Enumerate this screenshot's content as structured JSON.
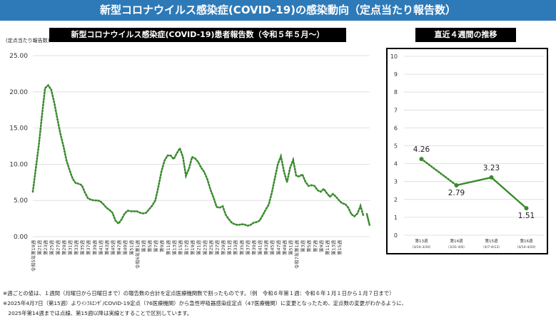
{
  "header": {
    "title": "新型コロナウイルス感染症(COVID-19)の感染動向（定点当たり報告数）"
  },
  "main_chart_title": "新型コロナウイルス感染症(COVID-19)患者報告数（令和５年５月～）",
  "side_chart_title": "直近４週間の推移",
  "y_unit_label": "(定点当たり報告数)",
  "notes": [
    "※週ごとの値は、１週間（月曜日から日曜日まで）の報告数の合計を定点医療機関数で割ったものです。（例　令和６年第１週：令和６年１月１日から１月７日まで）",
    "※2025年4月7日（第15週）よりｲﾝﾌﾙｴﾝｻﾞ/COVID-19定点（76医療機関）から急性呼吸器感染症定点（47医療機関）に変更となったため、定点数の変更がわかるように、",
    "　2025年第14週までは点線、第15週以降は実線とすることで区別しています。"
  ],
  "chart_data": [
    {
      "type": "line",
      "y_tick_labels": [
        "0.00",
        "5.00",
        "10.00",
        "15.00",
        "20.00",
        "25.00"
      ],
      "ylim": [
        0,
        25
      ],
      "x_tick_labels": [
        "令和5年第19週",
        "第21週",
        "第23週",
        "第25週",
        "第27週",
        "第29週",
        "第31週",
        "第33週",
        "第35週",
        "第37週",
        "第39週",
        "第41週",
        "第43週",
        "第45週",
        "第47週",
        "第49週",
        "第51週",
        "令和6年第1週",
        "第3週",
        "第5週",
        "第7週",
        "第9週",
        "第11週",
        "第13週",
        "第15週",
        "第17週",
        "第19週",
        "第21週",
        "第23週",
        "第25週",
        "第27週",
        "第29週",
        "第31週",
        "第33週",
        "第35週",
        "第37週",
        "第39週",
        "第41週",
        "第43週",
        "第45週",
        "第47週",
        "第49週",
        "第51週",
        "令和7年第1週",
        "第3週",
        "第5週",
        "第7週",
        "第9週",
        "第11週",
        "第13週",
        "第15週"
      ],
      "grid": true,
      "series": [
        {
          "style": "dotted",
          "color": "#3a8a2e",
          "values": [
            6.2,
            9.5,
            12.8,
            16.8,
            20.5,
            20.9,
            20.3,
            18.5,
            16.3,
            14.2,
            12.5,
            10.5,
            9.2,
            8.0,
            7.4,
            7.3,
            7.1,
            6.1,
            5.3,
            5.1,
            5.0,
            5.0,
            4.9,
            4.5,
            4.0,
            3.7,
            3.3,
            2.2,
            1.8,
            2.4,
            3.2,
            3.6,
            3.5,
            3.5,
            3.5,
            3.3,
            3.2,
            3.3,
            3.8,
            4.3,
            5.0,
            6.9,
            9.0,
            10.5,
            11.2,
            11.2,
            10.7,
            11.5,
            12.2,
            11.0,
            8.4,
            9.4,
            11.0,
            10.8,
            10.3,
            9.5,
            8.9,
            7.9,
            6.5,
            5.4,
            4.1,
            4.0,
            4.2,
            3.0,
            2.4,
            1.9,
            1.7,
            1.6,
            1.7,
            1.7,
            1.5,
            1.6,
            1.9,
            2.0,
            2.2,
            2.9,
            3.7,
            4.4,
            6.0,
            8.0,
            10.0,
            11.1,
            9.0,
            7.5,
            9.5,
            10.6,
            8.4,
            8.3,
            8.6,
            7.6,
            7.0,
            7.1,
            7.0,
            6.4,
            6.2,
            6.6,
            6.0,
            5.5,
            5.9,
            5.5,
            5.0,
            4.6,
            4.5,
            4.0,
            3.1,
            2.8,
            3.2,
            4.26,
            2.79
          ]
        },
        {
          "style": "solid",
          "color": "#3a8a2e",
          "values": [
            3.23,
            1.51
          ]
        }
      ]
    },
    {
      "type": "line",
      "y_tick_labels": [
        "0",
        "1",
        "2",
        "3",
        "4",
        "5",
        "6",
        "7",
        "8",
        "9",
        "10"
      ],
      "ylim": [
        0,
        10
      ],
      "categories": [
        "第13週",
        "第14週",
        "第15週",
        "第16週"
      ],
      "sub_labels": [
        "（3/24-3/30）",
        "（3/31-4/6）",
        "（4/7-4/13）",
        "（4/14-4/20）"
      ],
      "point_labels": [
        "4.26",
        "2.79",
        "3.23",
        "1.51"
      ],
      "series": [
        {
          "style": "dotted",
          "color": "#3a8a2e",
          "values": [
            4.26,
            2.79,
            null,
            null
          ]
        },
        {
          "style": "solid",
          "color": "#3a8a2e",
          "values": [
            null,
            2.79,
            3.23,
            1.51
          ]
        }
      ]
    }
  ]
}
